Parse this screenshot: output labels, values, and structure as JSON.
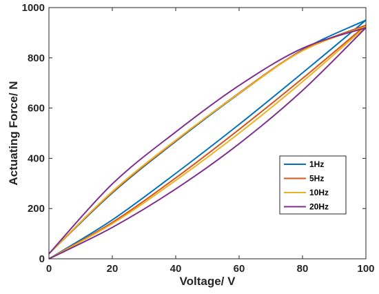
{
  "chart_data": {
    "type": "line",
    "title": "",
    "xlabel": "Voltage/ V",
    "ylabel": "Actuating Force/ N",
    "xlim": [
      0,
      100
    ],
    "ylim": [
      0,
      1000
    ],
    "xticks": [
      "0",
      "20",
      "40",
      "60",
      "80",
      "100"
    ],
    "yticks": [
      "0",
      "200",
      "400",
      "600",
      "800",
      "1000"
    ],
    "grid": false,
    "legend_position": "right",
    "series": [
      {
        "name": "1Hz",
        "color": "#0072BD",
        "loading": {
          "x": [
            0,
            20,
            40,
            60,
            80,
            100
          ],
          "y": [
            0,
            155,
            340,
            535,
            740,
            950
          ]
        },
        "unloading": {
          "x": [
            100,
            80,
            60,
            40,
            20,
            0
          ],
          "y": [
            950,
            832,
            657,
            467,
            262,
            20
          ]
        }
      },
      {
        "name": "5Hz",
        "color": "#D95319",
        "loading": {
          "x": [
            0,
            20,
            40,
            60,
            80,
            100
          ],
          "y": [
            0,
            145,
            322,
            515,
            718,
            930
          ]
        },
        "unloading": {
          "x": [
            100,
            80,
            60,
            40,
            20,
            0
          ],
          "y": [
            930,
            830,
            660,
            470,
            265,
            20
          ]
        }
      },
      {
        "name": "10Hz",
        "color": "#EDB120",
        "loading": {
          "x": [
            0,
            20,
            40,
            60,
            80,
            100
          ],
          "y": [
            0,
            140,
            312,
            500,
            705,
            925
          ]
        },
        "unloading": {
          "x": [
            100,
            80,
            60,
            40,
            20,
            0
          ],
          "y": [
            925,
            828,
            658,
            472,
            268,
            20
          ]
        }
      },
      {
        "name": "20Hz",
        "color": "#7E2F8E",
        "loading": {
          "x": [
            0,
            20,
            40,
            60,
            80,
            100
          ],
          "y": [
            0,
            125,
            278,
            458,
            670,
            920
          ]
        },
        "unloading": {
          "x": [
            100,
            80,
            60,
            40,
            20,
            0
          ],
          "y": [
            920,
            838,
            690,
            505,
            298,
            20
          ]
        }
      }
    ]
  }
}
